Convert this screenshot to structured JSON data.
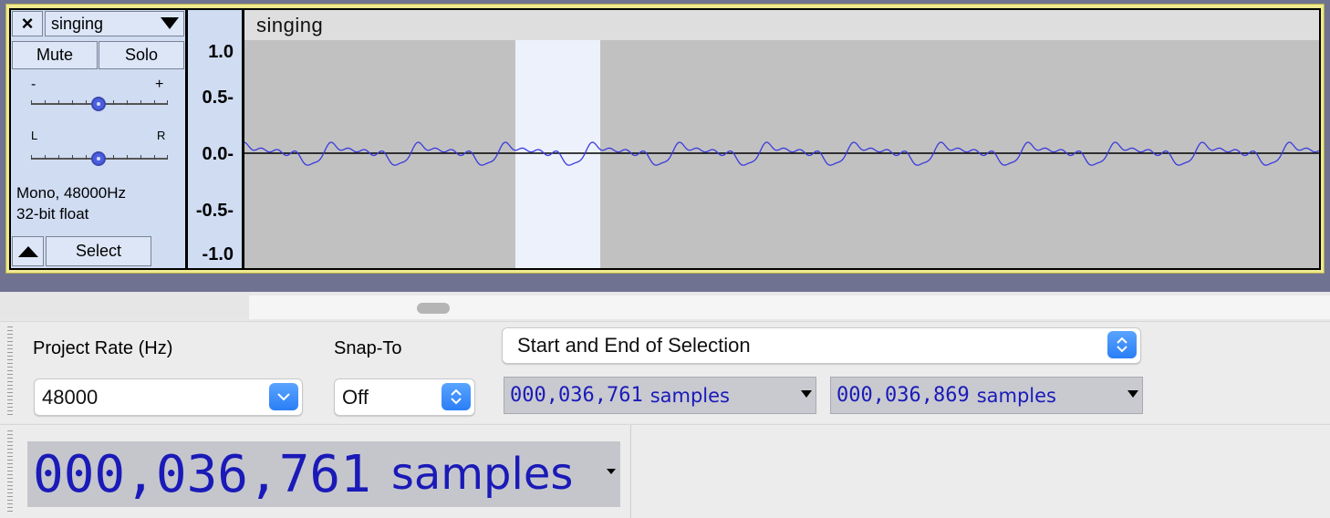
{
  "track": {
    "name": "singing",
    "close_icon": "×",
    "mute_label": "Mute",
    "solo_label": "Solo",
    "gain_minus": "-",
    "gain_plus": "+",
    "pan_left": "L",
    "pan_right": "R",
    "info_line1": "Mono, 48000Hz",
    "info_line2": "32-bit float",
    "select_label": "Select",
    "clip_title": "singing"
  },
  "vruler": {
    "labels": [
      "1.0",
      "0.5-",
      "0.0-",
      "-0.5-",
      "-1.0"
    ]
  },
  "toolbar": {
    "project_rate_label": "Project Rate (Hz)",
    "project_rate_value": "48000",
    "snap_to_label": "Snap-To",
    "snap_to_value": "Off",
    "selection_mode": "Start and End of Selection",
    "start_digits": "000,036,761",
    "end_digits": "000,036,869",
    "unit": "samples"
  },
  "time": {
    "digits": "000,036,761",
    "unit": "samples"
  },
  "colors": {
    "waveform": "#3a3adf",
    "track_bg": "#cfdcf2",
    "selection": "#edf1fb",
    "time_text": "#1a1ab8"
  }
}
